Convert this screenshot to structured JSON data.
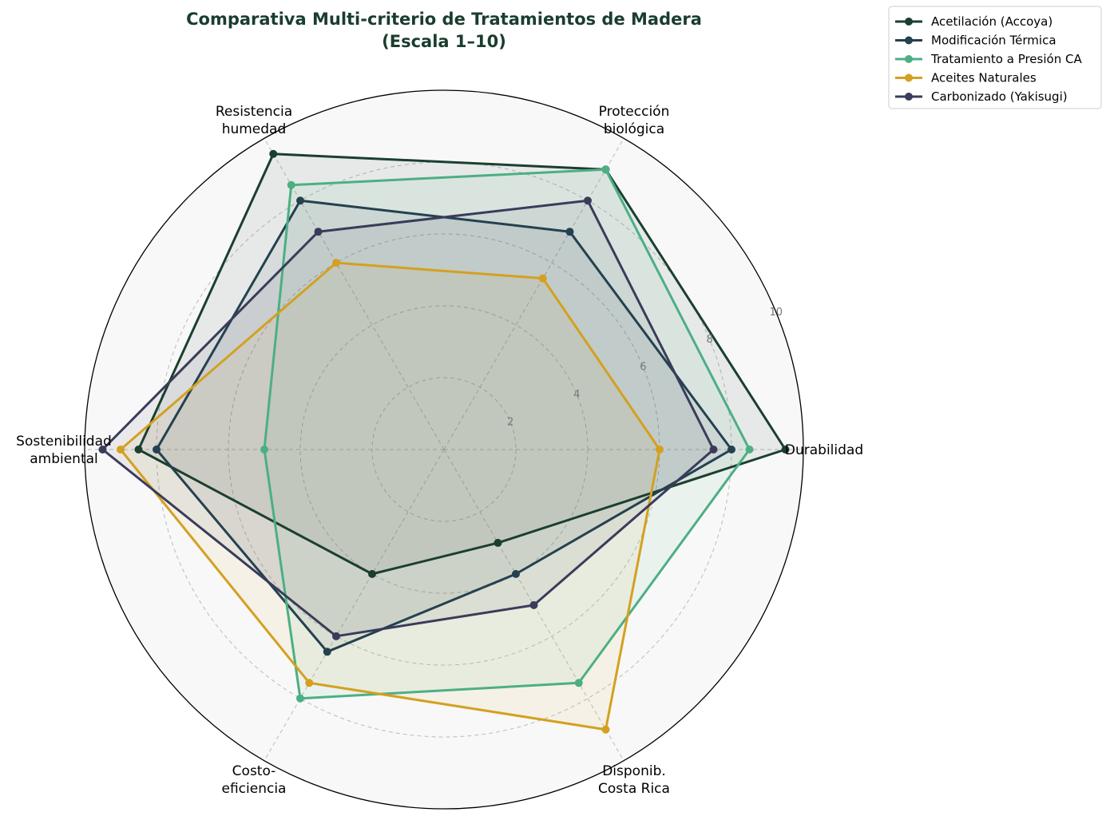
{
  "chart_data": {
    "type": "radar",
    "title": "Comparativa Multi-criterio de Tratamientos de Madera",
    "subtitle": "(Escala 1–10)",
    "axes": [
      [
        "Durabilidad"
      ],
      [
        "Protección",
        "biológica"
      ],
      [
        "Resistencia",
        "humedad"
      ],
      [
        "Sostenibilidad",
        "ambiental"
      ],
      [
        "Costo-",
        "eficiencia"
      ],
      [
        "Disponib.",
        "Costa Rica"
      ]
    ],
    "rlim": [
      0,
      10
    ],
    "rticks": [
      "2",
      "4",
      "6",
      "8",
      "10"
    ],
    "grid": true,
    "legend_position": "top-right, outside plot",
    "series": [
      {
        "name": "Acetilación (Accoya)",
        "color": "#1b3f2f",
        "values": [
          9.5,
          9.0,
          9.5,
          8.5,
          4.0,
          3.0
        ]
      },
      {
        "name": "Modificación Térmica",
        "color": "#24414f",
        "values": [
          8.0,
          7.0,
          8.0,
          8.0,
          6.5,
          4.0
        ]
      },
      {
        "name": "Tratamiento a Presión CA",
        "color": "#4caf83",
        "values": [
          8.5,
          9.0,
          8.5,
          5.0,
          8.0,
          7.5
        ]
      },
      {
        "name": "Aceites Naturales",
        "color": "#d4a020",
        "values": [
          6.0,
          5.5,
          6.0,
          9.0,
          7.5,
          9.0
        ]
      },
      {
        "name": "Carbonizado (Yakisugi)",
        "color": "#3a3c5a",
        "values": [
          7.5,
          8.0,
          7.0,
          9.5,
          6.0,
          5.0
        ]
      }
    ]
  }
}
